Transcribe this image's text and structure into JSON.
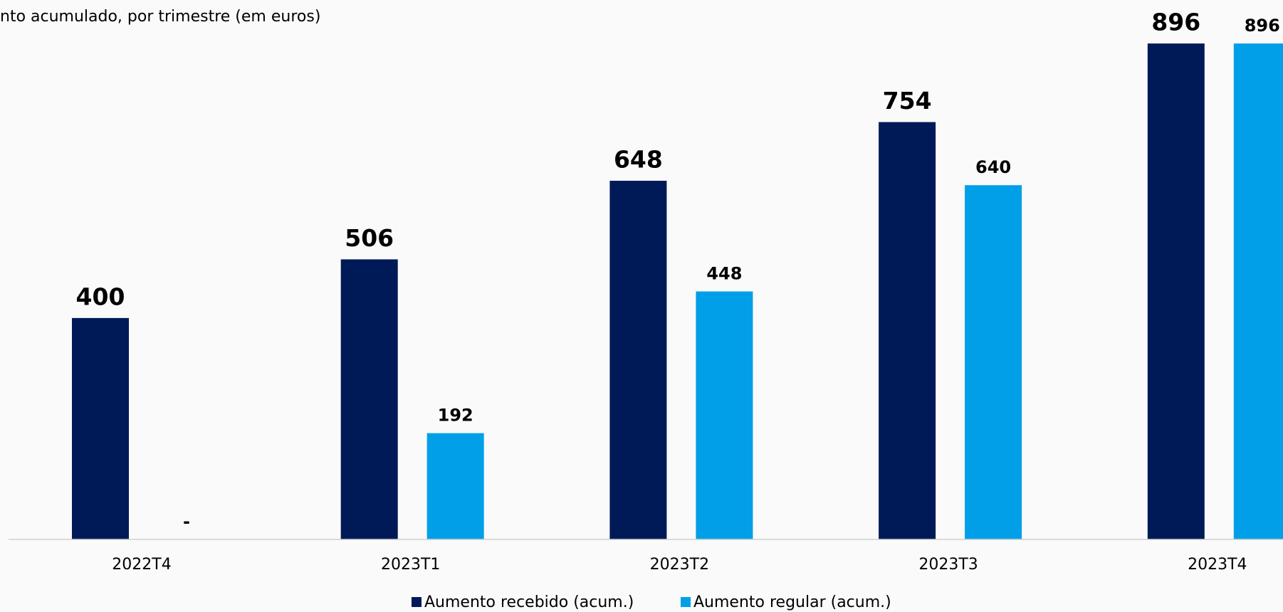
{
  "chart_data": {
    "type": "bar",
    "subtitle": "nto acumulado, por trimestre (em euros)",
    "categories": [
      "2022T4",
      "2023T1",
      "2023T2",
      "2023T3",
      "2023T4"
    ],
    "series": [
      {
        "name": "Aumento recebido (acum.)",
        "color": "#001a57",
        "values": [
          400,
          506,
          648,
          754,
          896
        ]
      },
      {
        "name": "Aumento regular (acum.)",
        "color": "#009fe8",
        "values": [
          0,
          192,
          448,
          640,
          896
        ],
        "value_labels": [
          "-",
          "192",
          "448",
          "640",
          "896"
        ]
      }
    ],
    "ylim": [
      0,
      900
    ],
    "grid": false,
    "legend": "bottom"
  }
}
